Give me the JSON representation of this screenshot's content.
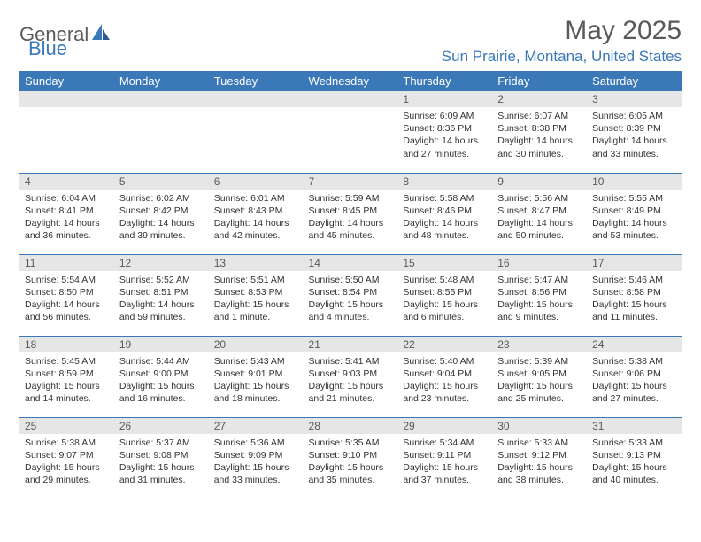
{
  "logo": {
    "general": "General",
    "blue": "Blue"
  },
  "title": "May 2025",
  "location": "Sun Prairie, Montana, United States",
  "colors": {
    "header_bg": "#3b78b8",
    "header_text": "#ffffff",
    "daynum_bg": "#e6e6e6",
    "text": "#333333",
    "accent": "#3b78b8"
  },
  "weekdays": [
    "Sunday",
    "Monday",
    "Tuesday",
    "Wednesday",
    "Thursday",
    "Friday",
    "Saturday"
  ],
  "weeks": [
    [
      null,
      null,
      null,
      null,
      {
        "n": "1",
        "sr": "Sunrise: 6:09 AM",
        "ss": "Sunset: 8:36 PM",
        "d1": "Daylight: 14 hours",
        "d2": "and 27 minutes."
      },
      {
        "n": "2",
        "sr": "Sunrise: 6:07 AM",
        "ss": "Sunset: 8:38 PM",
        "d1": "Daylight: 14 hours",
        "d2": "and 30 minutes."
      },
      {
        "n": "3",
        "sr": "Sunrise: 6:05 AM",
        "ss": "Sunset: 8:39 PM",
        "d1": "Daylight: 14 hours",
        "d2": "and 33 minutes."
      }
    ],
    [
      {
        "n": "4",
        "sr": "Sunrise: 6:04 AM",
        "ss": "Sunset: 8:41 PM",
        "d1": "Daylight: 14 hours",
        "d2": "and 36 minutes."
      },
      {
        "n": "5",
        "sr": "Sunrise: 6:02 AM",
        "ss": "Sunset: 8:42 PM",
        "d1": "Daylight: 14 hours",
        "d2": "and 39 minutes."
      },
      {
        "n": "6",
        "sr": "Sunrise: 6:01 AM",
        "ss": "Sunset: 8:43 PM",
        "d1": "Daylight: 14 hours",
        "d2": "and 42 minutes."
      },
      {
        "n": "7",
        "sr": "Sunrise: 5:59 AM",
        "ss": "Sunset: 8:45 PM",
        "d1": "Daylight: 14 hours",
        "d2": "and 45 minutes."
      },
      {
        "n": "8",
        "sr": "Sunrise: 5:58 AM",
        "ss": "Sunset: 8:46 PM",
        "d1": "Daylight: 14 hours",
        "d2": "and 48 minutes."
      },
      {
        "n": "9",
        "sr": "Sunrise: 5:56 AM",
        "ss": "Sunset: 8:47 PM",
        "d1": "Daylight: 14 hours",
        "d2": "and 50 minutes."
      },
      {
        "n": "10",
        "sr": "Sunrise: 5:55 AM",
        "ss": "Sunset: 8:49 PM",
        "d1": "Daylight: 14 hours",
        "d2": "and 53 minutes."
      }
    ],
    [
      {
        "n": "11",
        "sr": "Sunrise: 5:54 AM",
        "ss": "Sunset: 8:50 PM",
        "d1": "Daylight: 14 hours",
        "d2": "and 56 minutes."
      },
      {
        "n": "12",
        "sr": "Sunrise: 5:52 AM",
        "ss": "Sunset: 8:51 PM",
        "d1": "Daylight: 14 hours",
        "d2": "and 59 minutes."
      },
      {
        "n": "13",
        "sr": "Sunrise: 5:51 AM",
        "ss": "Sunset: 8:53 PM",
        "d1": "Daylight: 15 hours",
        "d2": "and 1 minute."
      },
      {
        "n": "14",
        "sr": "Sunrise: 5:50 AM",
        "ss": "Sunset: 8:54 PM",
        "d1": "Daylight: 15 hours",
        "d2": "and 4 minutes."
      },
      {
        "n": "15",
        "sr": "Sunrise: 5:48 AM",
        "ss": "Sunset: 8:55 PM",
        "d1": "Daylight: 15 hours",
        "d2": "and 6 minutes."
      },
      {
        "n": "16",
        "sr": "Sunrise: 5:47 AM",
        "ss": "Sunset: 8:56 PM",
        "d1": "Daylight: 15 hours",
        "d2": "and 9 minutes."
      },
      {
        "n": "17",
        "sr": "Sunrise: 5:46 AM",
        "ss": "Sunset: 8:58 PM",
        "d1": "Daylight: 15 hours",
        "d2": "and 11 minutes."
      }
    ],
    [
      {
        "n": "18",
        "sr": "Sunrise: 5:45 AM",
        "ss": "Sunset: 8:59 PM",
        "d1": "Daylight: 15 hours",
        "d2": "and 14 minutes."
      },
      {
        "n": "19",
        "sr": "Sunrise: 5:44 AM",
        "ss": "Sunset: 9:00 PM",
        "d1": "Daylight: 15 hours",
        "d2": "and 16 minutes."
      },
      {
        "n": "20",
        "sr": "Sunrise: 5:43 AM",
        "ss": "Sunset: 9:01 PM",
        "d1": "Daylight: 15 hours",
        "d2": "and 18 minutes."
      },
      {
        "n": "21",
        "sr": "Sunrise: 5:41 AM",
        "ss": "Sunset: 9:03 PM",
        "d1": "Daylight: 15 hours",
        "d2": "and 21 minutes."
      },
      {
        "n": "22",
        "sr": "Sunrise: 5:40 AM",
        "ss": "Sunset: 9:04 PM",
        "d1": "Daylight: 15 hours",
        "d2": "and 23 minutes."
      },
      {
        "n": "23",
        "sr": "Sunrise: 5:39 AM",
        "ss": "Sunset: 9:05 PM",
        "d1": "Daylight: 15 hours",
        "d2": "and 25 minutes."
      },
      {
        "n": "24",
        "sr": "Sunrise: 5:38 AM",
        "ss": "Sunset: 9:06 PM",
        "d1": "Daylight: 15 hours",
        "d2": "and 27 minutes."
      }
    ],
    [
      {
        "n": "25",
        "sr": "Sunrise: 5:38 AM",
        "ss": "Sunset: 9:07 PM",
        "d1": "Daylight: 15 hours",
        "d2": "and 29 minutes."
      },
      {
        "n": "26",
        "sr": "Sunrise: 5:37 AM",
        "ss": "Sunset: 9:08 PM",
        "d1": "Daylight: 15 hours",
        "d2": "and 31 minutes."
      },
      {
        "n": "27",
        "sr": "Sunrise: 5:36 AM",
        "ss": "Sunset: 9:09 PM",
        "d1": "Daylight: 15 hours",
        "d2": "and 33 minutes."
      },
      {
        "n": "28",
        "sr": "Sunrise: 5:35 AM",
        "ss": "Sunset: 9:10 PM",
        "d1": "Daylight: 15 hours",
        "d2": "and 35 minutes."
      },
      {
        "n": "29",
        "sr": "Sunrise: 5:34 AM",
        "ss": "Sunset: 9:11 PM",
        "d1": "Daylight: 15 hours",
        "d2": "and 37 minutes."
      },
      {
        "n": "30",
        "sr": "Sunrise: 5:33 AM",
        "ss": "Sunset: 9:12 PM",
        "d1": "Daylight: 15 hours",
        "d2": "and 38 minutes."
      },
      {
        "n": "31",
        "sr": "Sunrise: 5:33 AM",
        "ss": "Sunset: 9:13 PM",
        "d1": "Daylight: 15 hours",
        "d2": "and 40 minutes."
      }
    ]
  ]
}
